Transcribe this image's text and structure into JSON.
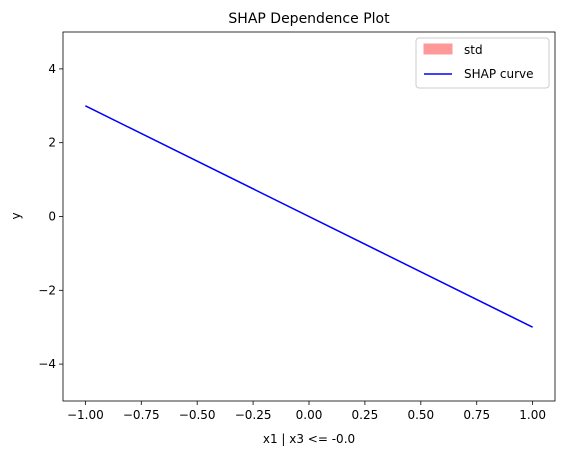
{
  "chart_data": {
    "type": "line",
    "title": "SHAP Dependence Plot",
    "xlabel": "x1 | x3 <= -0.0",
    "ylabel": "y",
    "xlim": [
      -1.1,
      1.1
    ],
    "ylim": [
      -5,
      5
    ],
    "xticks": [
      -1.0,
      -0.75,
      -0.5,
      -0.25,
      0.0,
      0.25,
      0.5,
      0.75,
      1.0
    ],
    "xtick_labels": [
      "−1.00",
      "−0.75",
      "−0.50",
      "−0.25",
      "0.00",
      "0.25",
      "0.50",
      "0.75",
      "1.00"
    ],
    "yticks": [
      -4,
      -2,
      0,
      2,
      4
    ],
    "ytick_labels": [
      "−4",
      "−2",
      "0",
      "2",
      "4"
    ],
    "grid": false,
    "legend_position": "top-right",
    "series": [
      {
        "name": "std",
        "kind": "band",
        "color": "#ff9999",
        "x": [
          -1.0,
          1.0
        ],
        "lower": [
          3.0,
          -3.0
        ],
        "upper": [
          3.0,
          -3.0
        ]
      },
      {
        "name": "SHAP curve",
        "kind": "line",
        "color": "#0000ff",
        "x": [
          -1.0,
          1.0
        ],
        "y": [
          3.0,
          -3.0
        ]
      }
    ]
  }
}
